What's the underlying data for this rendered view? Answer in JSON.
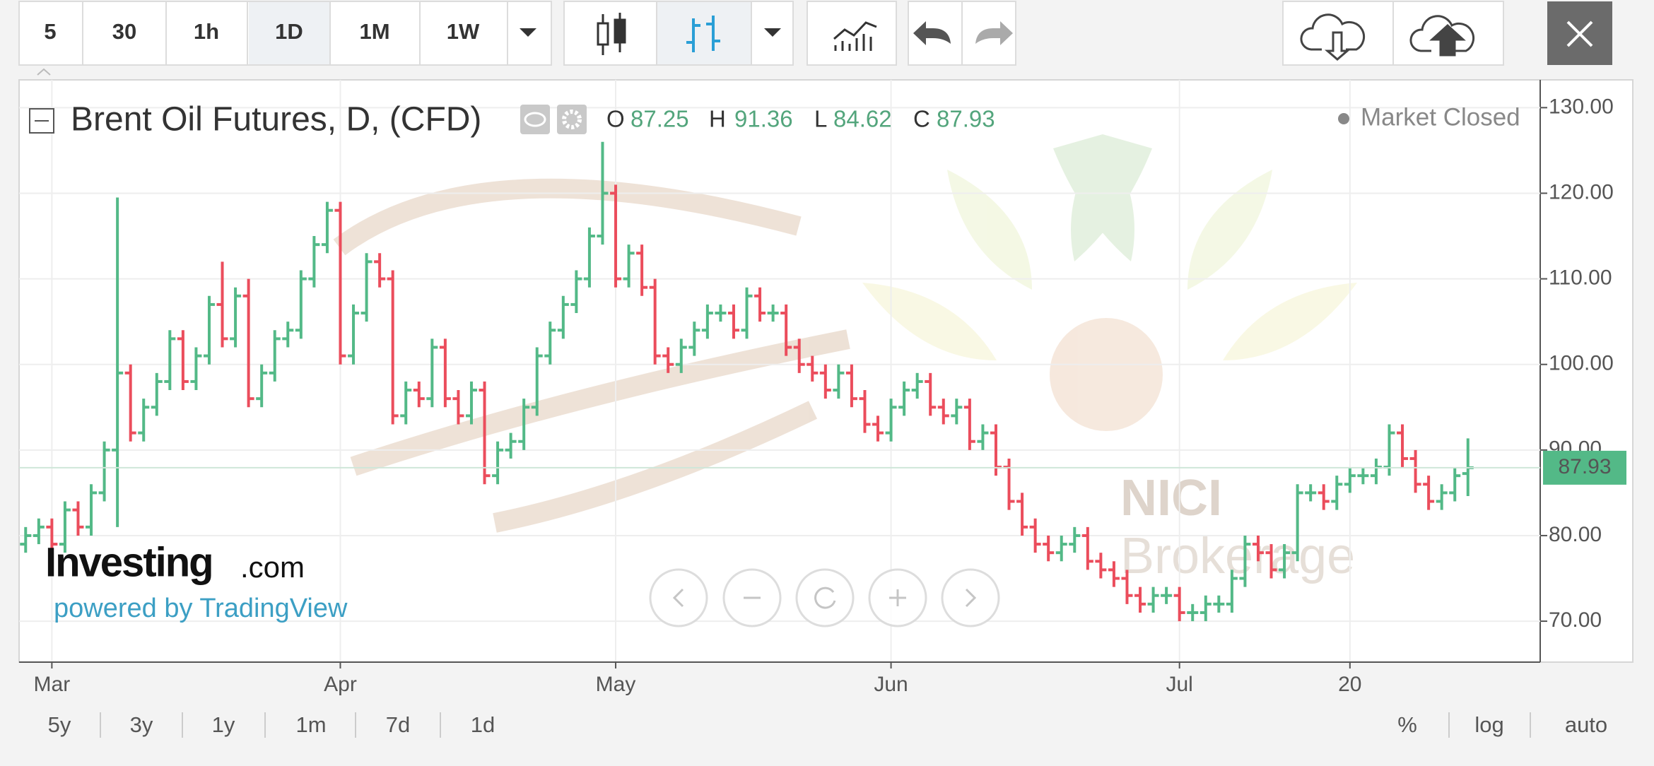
{
  "toolbar": {
    "intervals": [
      "5",
      "30",
      "1h",
      "1D",
      "1M",
      "1W"
    ]
  },
  "legend": {
    "title": "Brent Oil Futures, D, (CFD)",
    "open_label": "O",
    "high_label": "H",
    "low_label": "L",
    "close_label": "C"
  },
  "status": "Market Closed",
  "branding": {
    "logo": "Investing",
    "logo_suffix": ".com",
    "powered_by": "powered by TradingView"
  },
  "watermark": {
    "line1": "NICI",
    "line2": "Brokerage"
  },
  "footer": {
    "ranges": [
      "5y",
      "3y",
      "1y",
      "1m",
      "7d",
      "1d"
    ],
    "options": [
      "%",
      "log",
      "auto"
    ]
  },
  "chart_data": {
    "type": "ohlc",
    "up_color": "#53b987",
    "down_color": "#eb4d5c",
    "grid": true,
    "ylim": [
      65.3,
      133
    ],
    "yticks": [
      {
        "value": 70,
        "label": "70.00"
      },
      {
        "value": 80,
        "label": "80.00"
      },
      {
        "value": 90,
        "label": "90.00"
      },
      {
        "value": 100,
        "label": "100.00"
      },
      {
        "value": 110,
        "label": "110.00"
      },
      {
        "value": 120,
        "label": "120.00"
      },
      {
        "value": 130,
        "label": "130.00"
      }
    ],
    "categories": [
      null,
      null,
      "Mar",
      null,
      null,
      null,
      null,
      null,
      null,
      null,
      null,
      null,
      null,
      null,
      null,
      null,
      null,
      null,
      null,
      null,
      null,
      null,
      null,
      null,
      "Apr",
      null,
      null,
      null,
      null,
      null,
      null,
      null,
      null,
      null,
      null,
      null,
      null,
      null,
      null,
      null,
      null,
      null,
      null,
      null,
      null,
      "May",
      null,
      null,
      null,
      null,
      null,
      null,
      null,
      null,
      null,
      null,
      null,
      null,
      null,
      null,
      null,
      null,
      null,
      null,
      null,
      null,
      "Jun",
      null,
      null,
      null,
      null,
      null,
      null,
      null,
      null,
      null,
      null,
      null,
      null,
      null,
      null,
      null,
      null,
      null,
      null,
      null,
      null,
      null,
      "Jul",
      null,
      null,
      null,
      null,
      null,
      null,
      null,
      null,
      null,
      null,
      null,
      null,
      "20",
      null,
      null,
      null,
      null,
      null,
      null,
      null,
      null,
      null
    ],
    "open": [
      79,
      80,
      81,
      79,
      83,
      81,
      85,
      90,
      99,
      92,
      95,
      98,
      103,
      98,
      101,
      107,
      103,
      108,
      96,
      99,
      103,
      104,
      110,
      114,
      118,
      101,
      106,
      112,
      110,
      94,
      97,
      96,
      102,
      96,
      94,
      97,
      87,
      90,
      91,
      95,
      101,
      104,
      107,
      110,
      115,
      120,
      110,
      113,
      109,
      101,
      100,
      102,
      104,
      106,
      106,
      104,
      108,
      106,
      106,
      102,
      100,
      99,
      97,
      99,
      96,
      93,
      92,
      95,
      97,
      98,
      95,
      94,
      95,
      91,
      92,
      88,
      84,
      81,
      79,
      78,
      79,
      80,
      77,
      76,
      75,
      73,
      72,
      73,
      73,
      71,
      71,
      72,
      72,
      75,
      79,
      78,
      76,
      78,
      85,
      85,
      84,
      86,
      87,
      87,
      88,
      92,
      89,
      86,
      84,
      85,
      87.25
    ],
    "high": [
      81,
      82,
      82,
      84,
      84,
      86,
      91,
      119.5,
      100,
      96,
      99,
      104,
      104,
      102,
      108,
      112,
      109,
      110,
      100,
      104,
      105,
      111,
      115,
      119,
      119,
      107,
      113,
      113,
      111,
      98,
      98,
      103,
      103,
      97,
      98,
      98,
      91,
      92,
      96,
      102,
      105,
      108,
      111,
      116,
      126,
      121,
      114,
      114,
      110,
      102,
      103,
      105,
      107,
      107,
      107,
      109,
      109,
      107,
      107,
      103,
      101,
      100,
      100,
      100,
      97,
      94,
      96,
      98,
      99,
      99,
      96,
      96,
      96,
      93,
      93,
      89,
      85,
      82,
      80,
      80,
      81,
      81,
      78,
      77,
      76,
      74,
      74,
      74,
      74,
      72,
      73,
      73,
      76,
      80,
      80,
      79,
      79,
      86,
      86,
      86,
      87,
      88,
      88,
      89,
      93,
      93,
      90,
      87,
      86,
      88,
      91.36
    ],
    "low": [
      78,
      79,
      78,
      78,
      80,
      80,
      84,
      81,
      91,
      91,
      94,
      97,
      97,
      97,
      100,
      102,
      102,
      95,
      95,
      98,
      102,
      103,
      109,
      113,
      100,
      100,
      105,
      109,
      93,
      93,
      95,
      95,
      95,
      93,
      93,
      86,
      86,
      89,
      90,
      94,
      100,
      103,
      106,
      109,
      114,
      109,
      109,
      108,
      100,
      99,
      99,
      101,
      103,
      105,
      103,
      103,
      105,
      105,
      101,
      99,
      98,
      96,
      96,
      95,
      92,
      91,
      91,
      94,
      96,
      94,
      93,
      93,
      90,
      90,
      87,
      83,
      80,
      78,
      77,
      77,
      78,
      76,
      75,
      74,
      72,
      71,
      71,
      72,
      70,
      70,
      70,
      71,
      71,
      74,
      77,
      75,
      75,
      77,
      84,
      83,
      83,
      85,
      86,
      86,
      87,
      88,
      85,
      83,
      83,
      84,
      84.62
    ],
    "close": [
      80,
      81,
      79,
      83,
      81,
      85,
      90,
      99,
      92,
      95,
      98,
      103,
      98,
      101,
      107,
      103,
      108,
      96,
      99,
      103,
      104,
      110,
      114,
      118,
      101,
      106,
      112,
      110,
      94,
      97,
      96,
      102,
      96,
      94,
      97,
      87,
      90,
      91,
      95,
      101,
      104,
      107,
      110,
      115,
      120,
      110,
      113,
      109,
      101,
      100,
      102,
      104,
      106,
      106,
      104,
      108,
      106,
      106,
      102,
      100,
      99,
      97,
      99,
      96,
      93,
      92,
      95,
      97,
      98,
      95,
      94,
      95,
      91,
      92,
      88,
      84,
      81,
      79,
      78,
      79,
      80,
      77,
      76,
      75,
      73,
      72,
      73,
      73,
      71,
      71,
      72,
      72,
      75,
      79,
      78,
      76,
      78,
      85,
      85,
      84,
      86,
      87,
      87,
      88,
      92,
      89,
      86,
      84,
      85,
      87,
      87.93
    ]
  }
}
